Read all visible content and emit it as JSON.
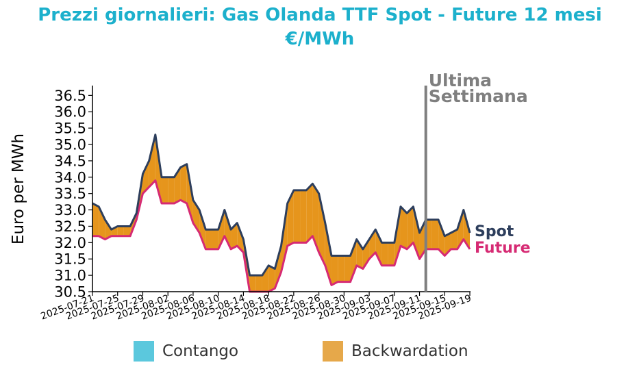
{
  "title": {
    "line1": "Prezzi giornalieri: Gas Olanda TTF Spot - Future 12 mesi",
    "line2": "€/MWh"
  },
  "colors": {
    "title": "#1cb0cc",
    "spot": "#2d3e5c",
    "future": "#d62a73",
    "backwardation": "#e6951c",
    "contango": "#5bc8dd",
    "marker": "#7f7f7f"
  },
  "marker": {
    "line1": "Ultima",
    "line2": "Settimana",
    "date": "2025-09-12"
  },
  "legend": [
    {
      "label": "Contango",
      "color": "#5bc8dd"
    },
    {
      "label": "Backwardation",
      "color": "#e6a84a"
    }
  ],
  "chart_data": {
    "type": "area",
    "ylabel": "Euro per MWh",
    "xlabel": "",
    "ylim": [
      30.5,
      36.8
    ],
    "yticks": [
      "30.5",
      "31.0",
      "31.5",
      "32.0",
      "32.5",
      "33.0",
      "33.5",
      "34.0",
      "34.5",
      "35.0",
      "35.5",
      "36.0",
      "36.5"
    ],
    "xticks": [
      "2025-07-21",
      "2025-07-25",
      "2025-07-29",
      "2025-08-02",
      "2025-08-06",
      "2025-08-10",
      "2025-08-14",
      "2025-08-18",
      "2025-08-22",
      "2025-08-26",
      "2025-08-30",
      "2025-09-03",
      "2025-09-07",
      "2025-09-11",
      "2025-09-15",
      "2025-09-19"
    ],
    "x": [
      "2025-07-21",
      "2025-07-22",
      "2025-07-23",
      "2025-07-24",
      "2025-07-25",
      "2025-07-26",
      "2025-07-27",
      "2025-07-28",
      "2025-07-29",
      "2025-07-30",
      "2025-07-31",
      "2025-08-01",
      "2025-08-02",
      "2025-08-03",
      "2025-08-04",
      "2025-08-05",
      "2025-08-06",
      "2025-08-07",
      "2025-08-08",
      "2025-08-09",
      "2025-08-10",
      "2025-08-11",
      "2025-08-12",
      "2025-08-13",
      "2025-08-14",
      "2025-08-15",
      "2025-08-16",
      "2025-08-17",
      "2025-08-18",
      "2025-08-19",
      "2025-08-20",
      "2025-08-21",
      "2025-08-22",
      "2025-08-23",
      "2025-08-24",
      "2025-08-25",
      "2025-08-26",
      "2025-08-27",
      "2025-08-28",
      "2025-08-29",
      "2025-08-30",
      "2025-08-31",
      "2025-09-01",
      "2025-09-02",
      "2025-09-03",
      "2025-09-04",
      "2025-09-05",
      "2025-09-06",
      "2025-09-07",
      "2025-09-08",
      "2025-09-09",
      "2025-09-10",
      "2025-09-11",
      "2025-09-12",
      "2025-09-13",
      "2025-09-14",
      "2025-09-15",
      "2025-09-16",
      "2025-09-17",
      "2025-09-18",
      "2025-09-19"
    ],
    "series": [
      {
        "name": "Spot",
        "values": [
          33.2,
          33.1,
          32.7,
          32.4,
          32.5,
          32.5,
          32.5,
          32.9,
          34.1,
          34.5,
          35.3,
          34.0,
          34.0,
          34.0,
          34.3,
          34.4,
          33.3,
          33.0,
          32.4,
          32.4,
          32.4,
          33.0,
          32.4,
          32.6,
          32.1,
          31.0,
          31.0,
          31.0,
          31.3,
          31.2,
          31.9,
          33.2,
          33.6,
          33.6,
          33.6,
          33.8,
          33.5,
          32.6,
          31.6,
          31.6,
          31.6,
          31.6,
          32.1,
          31.8,
          32.1,
          32.4,
          32.0,
          32.0,
          32.0,
          33.1,
          32.9,
          33.1,
          32.3,
          32.7,
          32.7,
          32.7,
          32.2,
          32.3,
          32.4,
          33.0,
          32.3
        ]
      },
      {
        "name": "Future",
        "values": [
          32.2,
          32.2,
          32.1,
          32.2,
          32.2,
          32.2,
          32.2,
          32.7,
          33.5,
          33.7,
          33.9,
          33.2,
          33.2,
          33.2,
          33.3,
          33.2,
          32.6,
          32.3,
          31.8,
          31.8,
          31.8,
          32.2,
          31.8,
          31.9,
          31.7,
          30.5,
          30.5,
          30.5,
          30.5,
          30.6,
          31.1,
          31.9,
          32.0,
          32.0,
          32.0,
          32.2,
          31.7,
          31.3,
          30.7,
          30.8,
          30.8,
          30.8,
          31.3,
          31.2,
          31.5,
          31.7,
          31.3,
          31.3,
          31.3,
          31.9,
          31.8,
          32.0,
          31.5,
          31.8,
          31.8,
          31.8,
          31.6,
          31.8,
          31.8,
          32.1,
          31.8
        ]
      }
    ]
  }
}
